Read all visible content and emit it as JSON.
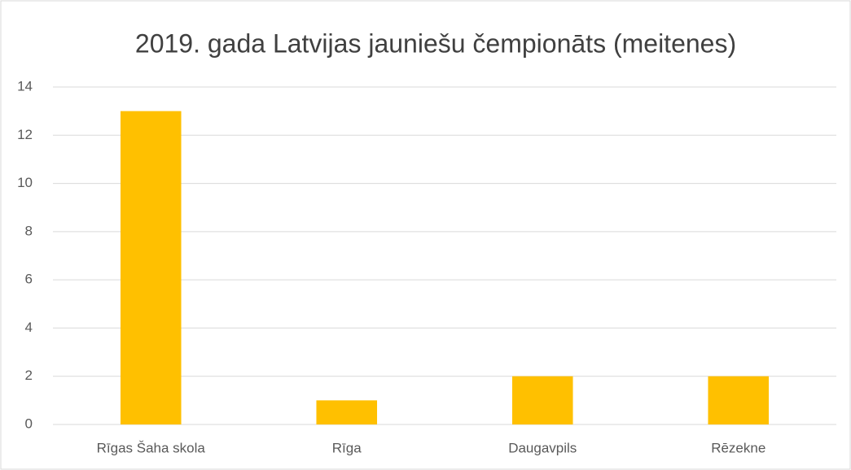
{
  "chart_data": {
    "type": "bar",
    "title": "2019. gada Latvijas jauniešu čempionāts (meitenes)",
    "categories": [
      "Rīgas Šaha skola",
      "Rīga",
      "Daugavpils",
      "Rēzekne"
    ],
    "values": [
      13,
      1,
      2,
      2
    ],
    "color": "#ffc000",
    "ylim": [
      0,
      14
    ],
    "yticks": [
      0,
      2,
      4,
      6,
      8,
      10,
      12,
      14
    ],
    "grid": true
  }
}
